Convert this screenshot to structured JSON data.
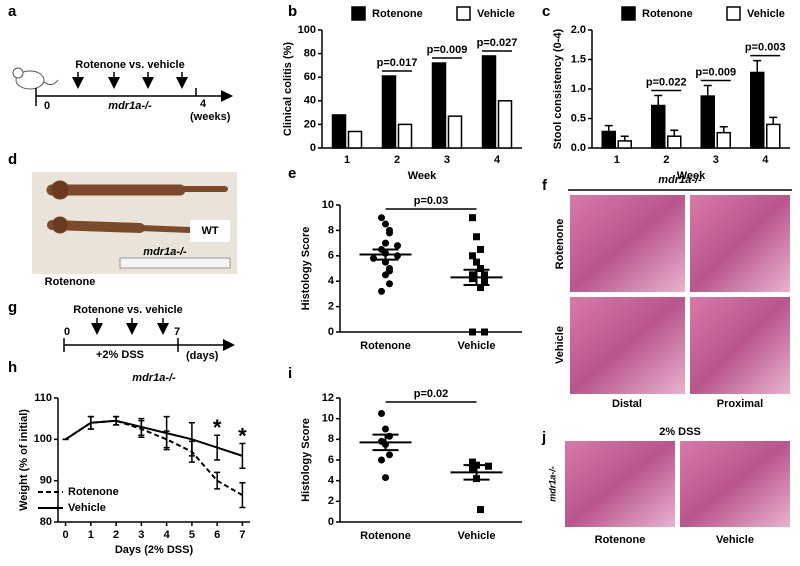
{
  "panels": {
    "a": {
      "label": "a",
      "arrow_text": "Rotenone vs. vehicle",
      "start": "0",
      "strain": "mdr1a-/-",
      "end": "4",
      "unit": "(weeks)"
    },
    "d": {
      "label": "d",
      "wt": "WT",
      "strain": "mdr1a-/-",
      "treatment": "Rotenone"
    },
    "f": {
      "label": "f",
      "strain": "mdr1a-/-",
      "rows": [
        "Rotenone",
        "Vehicle"
      ],
      "columns": [
        "Distal",
        "Proximal"
      ]
    },
    "g": {
      "label": "g",
      "arrow_text": "Rotenone vs. vehicle",
      "start": "0",
      "end": "7",
      "treatment": "+2% DSS",
      "unit": "(days)"
    },
    "j": {
      "label": "j",
      "title": "2% DSS",
      "strain": "mdr1a-/-",
      "columns": [
        "Rotenone",
        "Vehicle"
      ]
    }
  },
  "chart_data": [
    {
      "panel": "b",
      "type": "bar",
      "ylabel": "Clinical colitis (%)",
      "xlabel": "Week",
      "categories": [
        "1",
        "2",
        "3",
        "4"
      ],
      "series": [
        {
          "name": "Rotenone",
          "color": "#000000",
          "values": [
            28,
            61,
            72,
            78
          ]
        },
        {
          "name": "Vehicle",
          "color": "#ffffff",
          "values": [
            14,
            20,
            27,
            40
          ]
        }
      ],
      "ylim": [
        0,
        100
      ],
      "yticks": [
        0,
        20,
        40,
        60,
        80,
        100
      ],
      "legend": "top",
      "annotations": [
        {
          "text": "p=0.017",
          "category": "2"
        },
        {
          "text": "p=0.009",
          "category": "3"
        },
        {
          "text": "p=0.027",
          "category": "4"
        }
      ]
    },
    {
      "panel": "c",
      "type": "bar",
      "ylabel": "Stool consistency (0-4)",
      "xlabel": "Week",
      "categories": [
        "1",
        "2",
        "3",
        "4"
      ],
      "series": [
        {
          "name": "Rotenone",
          "color": "#000000",
          "values": [
            0.28,
            0.72,
            0.88,
            1.28
          ],
          "errors": [
            0.1,
            0.17,
            0.18,
            0.2
          ]
        },
        {
          "name": "Vehicle",
          "color": "#ffffff",
          "values": [
            0.12,
            0.2,
            0.26,
            0.4
          ],
          "errors": [
            0.08,
            0.1,
            0.1,
            0.12
          ]
        }
      ],
      "ylim": [
        0,
        2
      ],
      "yticks": [
        {
          "value": 0,
          "label": "0.0"
        },
        0.5,
        {
          "value": 1,
          "label": "1.0"
        },
        1.5,
        {
          "value": 2,
          "label": "2.0"
        }
      ],
      "legend": "top",
      "annotations": [
        {
          "text": "p=0.022",
          "category": "2"
        },
        {
          "text": "p=0.009",
          "category": "3"
        },
        {
          "text": "p=0.003",
          "category": "4"
        }
      ]
    },
    {
      "panel": "e",
      "type": "scatter",
      "ylabel": "Histology Score",
      "categories": [
        "Rotenone",
        "Vehicle"
      ],
      "markers": [
        "circle",
        "square"
      ],
      "values": [
        [
          9,
          8.5,
          8,
          7.8,
          7,
          6.8,
          6.5,
          6.2,
          6,
          5.8,
          5.5,
          5,
          4.8,
          4.5,
          3.8,
          3.2
        ],
        [
          9,
          7.5,
          6.5,
          6,
          5.5,
          5,
          4.5,
          4.5,
          4.3,
          4.2,
          4,
          3.5,
          0,
          0,
          0
        ]
      ],
      "means": [
        6.1,
        4.3
      ],
      "sems": [
        0.4,
        0.6
      ],
      "ylim": [
        0,
        10
      ],
      "yticks": [
        0,
        2,
        4,
        6,
        8,
        10
      ],
      "annotations": [
        {
          "text": "p=0.03"
        }
      ]
    },
    {
      "panel": "h",
      "type": "line",
      "title": "mdr1a-/-",
      "xlabel": "Days (2% DSS)",
      "ylabel": "Weight (% of initial)",
      "x": [
        0,
        1,
        2,
        3,
        4,
        5,
        6,
        7
      ],
      "series": [
        {
          "name": "Rotenone",
          "color": "#000000",
          "line_style": "dashed",
          "values": [
            100,
            104,
            104.5,
            102.5,
            100,
            97,
            90,
            86.5
          ],
          "errors": [
            0,
            1.5,
            1,
            2,
            2,
            2.5,
            2,
            3
          ]
        },
        {
          "name": "Vehicle",
          "color": "#000000",
          "line_style": "solid",
          "values": [
            100,
            104,
            104.5,
            103,
            101.5,
            100,
            98,
            96
          ],
          "errors": [
            0,
            1.5,
            1,
            2,
            4,
            4,
            3,
            3
          ]
        }
      ],
      "xlim": [
        -0.3,
        7.3
      ],
      "xticks": [
        0,
        1,
        2,
        3,
        4,
        5,
        6,
        7
      ],
      "ylim": [
        80,
        110
      ],
      "yticks": [
        80,
        90,
        100,
        110
      ],
      "legend": "lower left",
      "annotations": [
        {
          "text": "*",
          "x": 6
        },
        {
          "text": "*",
          "x": 7
        }
      ]
    },
    {
      "panel": "i",
      "type": "scatter",
      "ylabel": "Histology Score",
      "categories": [
        "Rotenone",
        "Vehicle"
      ],
      "markers": [
        "circle",
        "square"
      ],
      "values": [
        [
          10.5,
          9,
          8.3,
          7.8,
          7.5,
          6.5,
          6,
          4.3
        ],
        [
          5.8,
          5.5,
          5.4,
          5.2,
          4.2,
          1.2
        ]
      ],
      "means": [
        7.7,
        4.8
      ],
      "sems": [
        0.75,
        0.7
      ],
      "ylim": [
        0,
        12
      ],
      "yticks": [
        0,
        2,
        4,
        6,
        8,
        10,
        12
      ],
      "annotations": [
        {
          "text": "p=0.02"
        }
      ]
    }
  ]
}
